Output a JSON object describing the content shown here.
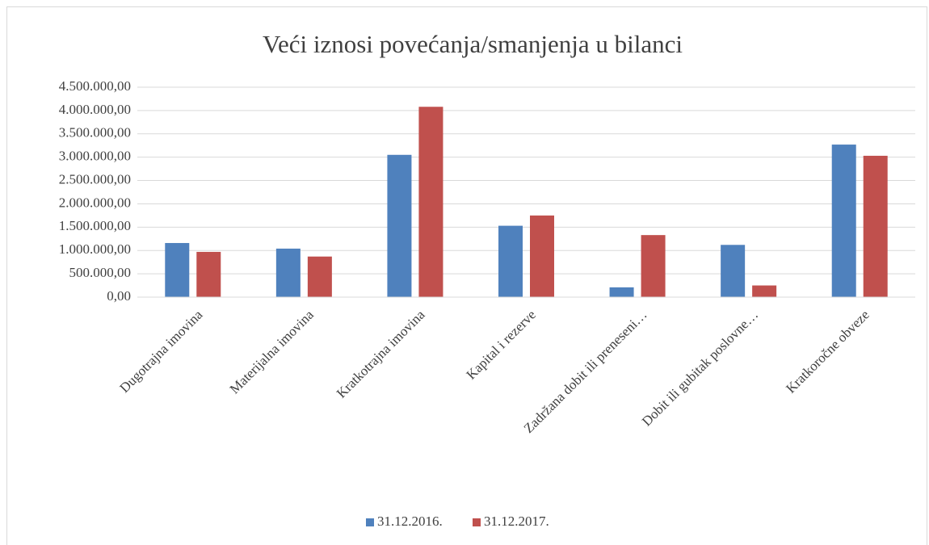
{
  "chart_data": {
    "type": "bar",
    "title": "Veći iznosi povećanja/smanjenja u bilanci",
    "categories": [
      "Dugotrajna imovina",
      "Materijalna imovina",
      "Kratkotrajna imovina",
      "Kapital i rezerve",
      "Zadržana dobit ili preneseni…",
      "Dobit ili gubitak poslovne…",
      "Kratkoročne obveze"
    ],
    "series": [
      {
        "name": "31.12.2016.",
        "color": "#4f81bd",
        "values": [
          1160000,
          1040000,
          3050000,
          1530000,
          210000,
          1120000,
          3270000
        ]
      },
      {
        "name": "31.12.2017.",
        "color": "#c0504d",
        "values": [
          970000,
          870000,
          4080000,
          1750000,
          1330000,
          250000,
          3030000
        ]
      }
    ],
    "ylim": [
      0,
      4500000
    ],
    "yticks": [
      {
        "value": 0,
        "label": "0,00"
      },
      {
        "value": 500000,
        "label": "500.000,00"
      },
      {
        "value": 1000000,
        "label": "1.000.000,00"
      },
      {
        "value": 1500000,
        "label": "1.500.000,00"
      },
      {
        "value": 2000000,
        "label": "2.000.000,00"
      },
      {
        "value": 2500000,
        "label": "2.500.000,00"
      },
      {
        "value": 3000000,
        "label": "3.000.000,00"
      },
      {
        "value": 3500000,
        "label": "3.500.000,00"
      },
      {
        "value": 4000000,
        "label": "4.000.000,00"
      },
      {
        "value": 4500000,
        "label": "4.500.000,00"
      }
    ],
    "grid": true,
    "legend": "bottom"
  }
}
